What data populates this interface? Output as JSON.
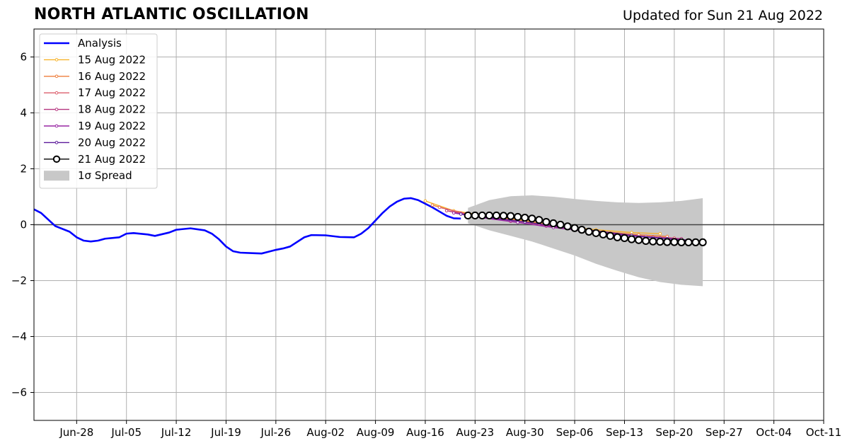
{
  "header": {
    "title": "NORTH ATLANTIC OSCILLATION",
    "updated": "Updated for Sun 21 Aug 2022"
  },
  "chart_data": {
    "type": "line",
    "xlim": [
      "2022-06-22",
      "2022-10-11"
    ],
    "ylim": [
      -7,
      7
    ],
    "grid": true,
    "legend_placement": "upper left",
    "xticks": [
      {
        "date": "2022-06-28",
        "label": "Jun-28"
      },
      {
        "date": "2022-07-05",
        "label": "Jul-05"
      },
      {
        "date": "2022-07-12",
        "label": "Jul-12"
      },
      {
        "date": "2022-07-19",
        "label": "Jul-19"
      },
      {
        "date": "2022-07-26",
        "label": "Jul-26"
      },
      {
        "date": "2022-08-02",
        "label": "Aug-02"
      },
      {
        "date": "2022-08-09",
        "label": "Aug-09"
      },
      {
        "date": "2022-08-16",
        "label": "Aug-16"
      },
      {
        "date": "2022-08-23",
        "label": "Aug-23"
      },
      {
        "date": "2022-08-30",
        "label": "Aug-30"
      },
      {
        "date": "2022-09-06",
        "label": "Sep-06"
      },
      {
        "date": "2022-09-13",
        "label": "Sep-13"
      },
      {
        "date": "2022-09-20",
        "label": "Sep-20"
      },
      {
        "date": "2022-09-27",
        "label": "Sep-27"
      },
      {
        "date": "2022-10-04",
        "label": "Oct-04"
      },
      {
        "date": "2022-10-11",
        "label": "Oct-11"
      }
    ],
    "yticks": [
      {
        "value": 6,
        "label": "6"
      },
      {
        "value": 4,
        "label": "4"
      },
      {
        "value": 2,
        "label": "2"
      },
      {
        "value": 0,
        "label": "0"
      },
      {
        "value": -2,
        "label": "−2"
      },
      {
        "value": -4,
        "label": "−4"
      },
      {
        "value": -6,
        "label": "−6"
      }
    ],
    "analysis": {
      "name": "Analysis",
      "color": "#0000ff",
      "x": [
        "2022-06-22",
        "2022-06-23",
        "2022-06-25",
        "2022-06-27",
        "2022-06-28",
        "2022-06-29",
        "2022-06-30",
        "2022-07-01",
        "2022-07-02",
        "2022-07-04",
        "2022-07-05",
        "2022-07-06",
        "2022-07-08",
        "2022-07-09",
        "2022-07-11",
        "2022-07-12",
        "2022-07-14",
        "2022-07-16",
        "2022-07-17",
        "2022-07-18",
        "2022-07-19",
        "2022-07-20",
        "2022-07-21",
        "2022-07-23",
        "2022-07-24",
        "2022-07-26",
        "2022-07-27",
        "2022-07-28",
        "2022-07-30",
        "2022-07-31",
        "2022-08-02",
        "2022-08-04",
        "2022-08-06",
        "2022-08-07",
        "2022-08-08",
        "2022-08-09",
        "2022-08-10",
        "2022-08-11",
        "2022-08-12",
        "2022-08-13",
        "2022-08-14",
        "2022-08-15",
        "2022-08-16",
        "2022-08-17",
        "2022-08-18",
        "2022-08-19",
        "2022-08-20",
        "2022-08-21"
      ],
      "y": [
        0.55,
        0.42,
        -0.05,
        -0.25,
        -0.45,
        -0.57,
        -0.6,
        -0.57,
        -0.5,
        -0.45,
        -0.32,
        -0.3,
        -0.35,
        -0.4,
        -0.28,
        -0.18,
        -0.13,
        -0.2,
        -0.32,
        -0.52,
        -0.78,
        -0.95,
        -1.0,
        -1.02,
        -1.03,
        -0.9,
        -0.85,
        -0.78,
        -0.45,
        -0.37,
        -0.38,
        -0.44,
        -0.45,
        -0.32,
        -0.12,
        0.15,
        0.42,
        0.65,
        0.82,
        0.93,
        0.95,
        0.88,
        0.75,
        0.62,
        0.47,
        0.32,
        0.23,
        0.22
      ]
    },
    "forecasts": [
      {
        "name": "15 Aug 2022",
        "color": "#f7b32b",
        "x": [
          "2022-08-16",
          "2022-08-20",
          "2022-08-25",
          "2022-08-30",
          "2022-09-04",
          "2022-09-09",
          "2022-09-14",
          "2022-09-18"
        ],
        "y": [
          0.85,
          0.5,
          0.3,
          0.15,
          -0.05,
          -0.18,
          -0.28,
          -0.32
        ]
      },
      {
        "name": "16 Aug 2022",
        "color": "#ee7d3b",
        "x": [
          "2022-08-17",
          "2022-08-21",
          "2022-08-26",
          "2022-08-31",
          "2022-09-05",
          "2022-09-10",
          "2022-09-15",
          "2022-09-19"
        ],
        "y": [
          0.7,
          0.42,
          0.25,
          0.08,
          -0.1,
          -0.25,
          -0.36,
          -0.42
        ]
      },
      {
        "name": "17 Aug 2022",
        "color": "#dc5e6c",
        "x": [
          "2022-08-18",
          "2022-08-22",
          "2022-08-27",
          "2022-09-01",
          "2022-09-06",
          "2022-09-11",
          "2022-09-16",
          "2022-09-20"
        ],
        "y": [
          0.62,
          0.38,
          0.2,
          0.02,
          -0.15,
          -0.3,
          -0.42,
          -0.48
        ]
      },
      {
        "name": "18 Aug 2022",
        "color": "#b5357f",
        "x": [
          "2022-08-19",
          "2022-08-23",
          "2022-08-28",
          "2022-09-02",
          "2022-09-07",
          "2022-09-12",
          "2022-09-17",
          "2022-09-21"
        ],
        "y": [
          0.5,
          0.3,
          0.12,
          -0.05,
          -0.2,
          -0.35,
          -0.45,
          -0.5
        ]
      },
      {
        "name": "19 Aug 2022",
        "color": "#9827a4",
        "x": [
          "2022-08-20",
          "2022-08-24",
          "2022-08-29",
          "2022-09-03",
          "2022-09-08",
          "2022-09-13",
          "2022-09-18",
          "2022-09-22"
        ],
        "y": [
          0.42,
          0.25,
          0.08,
          -0.1,
          -0.25,
          -0.38,
          -0.48,
          -0.55
        ]
      },
      {
        "name": "20 Aug 2022",
        "color": "#5b1a9a",
        "x": [
          "2022-08-21",
          "2022-08-25",
          "2022-08-30",
          "2022-09-04",
          "2022-09-09",
          "2022-09-14",
          "2022-09-19",
          "2022-09-23"
        ],
        "y": [
          0.38,
          0.25,
          0.1,
          -0.08,
          -0.22,
          -0.38,
          -0.5,
          -0.58
        ]
      },
      {
        "name": "21 Aug 2022",
        "color": "#000000",
        "x": [
          "2022-08-22",
          "2022-08-23",
          "2022-08-24",
          "2022-08-25",
          "2022-08-26",
          "2022-08-27",
          "2022-08-28",
          "2022-08-29",
          "2022-08-30",
          "2022-08-31",
          "2022-09-01",
          "2022-09-02",
          "2022-09-03",
          "2022-09-04",
          "2022-09-05",
          "2022-09-06",
          "2022-09-07",
          "2022-09-08",
          "2022-09-09",
          "2022-09-10",
          "2022-09-11",
          "2022-09-12",
          "2022-09-13",
          "2022-09-14",
          "2022-09-15",
          "2022-09-16",
          "2022-09-17",
          "2022-09-18",
          "2022-09-19",
          "2022-09-20",
          "2022-09-21",
          "2022-09-22",
          "2022-09-23",
          "2022-09-24"
        ],
        "y": [
          0.33,
          0.33,
          0.33,
          0.33,
          0.33,
          0.32,
          0.31,
          0.28,
          0.25,
          0.22,
          0.17,
          0.1,
          0.05,
          0.0,
          -0.06,
          -0.12,
          -0.18,
          -0.25,
          -0.3,
          -0.35,
          -0.4,
          -0.45,
          -0.48,
          -0.52,
          -0.55,
          -0.58,
          -0.6,
          -0.61,
          -0.62,
          -0.62,
          -0.63,
          -0.63,
          -0.63,
          -0.63
        ]
      }
    ],
    "spread": {
      "name": "1σ Spread",
      "color": "#c8c8c8",
      "x": [
        "2022-08-22",
        "2022-08-25",
        "2022-08-28",
        "2022-08-31",
        "2022-09-03",
        "2022-09-06",
        "2022-09-09",
        "2022-09-12",
        "2022-09-15",
        "2022-09-18",
        "2022-09-21",
        "2022-09-24"
      ],
      "upper": [
        0.6,
        0.88,
        1.02,
        1.05,
        1.0,
        0.92,
        0.85,
        0.8,
        0.78,
        0.8,
        0.85,
        0.95
      ],
      "lower": [
        0.05,
        -0.2,
        -0.4,
        -0.6,
        -0.85,
        -1.1,
        -1.4,
        -1.65,
        -1.88,
        -2.05,
        -2.15,
        -2.2
      ]
    }
  }
}
